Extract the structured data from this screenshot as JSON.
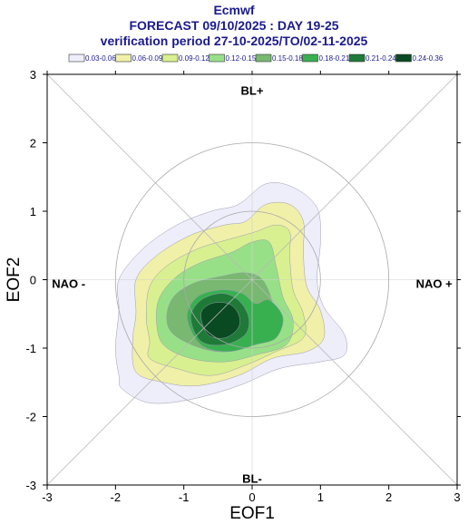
{
  "header": {
    "model": "Ecmwf",
    "forecast": "FORECAST 09/10/2025 : DAY 19-25",
    "verification": "verification period 27-10-2025/TO/02-11-2025"
  },
  "chart_data": {
    "type": "contour",
    "xlabel": "EOF1",
    "ylabel": "EOF2",
    "xlim": [
      -3,
      3
    ],
    "ylim": [
      -3,
      3
    ],
    "xticks": [
      "-3",
      "-2",
      "-1",
      "0",
      "1",
      "2",
      "3"
    ],
    "yticks": [
      "-3",
      "-2",
      "-1",
      "0",
      "1",
      "2",
      "3"
    ],
    "region_labels": {
      "top": "BL+",
      "bottom": "BL-",
      "left": "NAO -",
      "right": "NAO +"
    },
    "reference_circles_radius": [
      1,
      2
    ],
    "diagonals": true,
    "legend": [
      {
        "label": "0.03-0.06",
        "color": "#eeeefa"
      },
      {
        "label": "0.06-0.09",
        "color": "#f0f0a8"
      },
      {
        "label": "0.09-0.12",
        "color": "#d8f090"
      },
      {
        "label": "0.12-0.15",
        "color": "#98e088"
      },
      {
        "label": "0.15-0.18",
        "color": "#78b870"
      },
      {
        "label": "0.18-0.21",
        "color": "#38b050"
      },
      {
        "label": "0.21-0.24",
        "color": "#1f7a38"
      },
      {
        "label": "0.24-0.36",
        "color": "#0a4a22"
      }
    ],
    "density_levels": [
      {
        "range": "0.03-0.06",
        "points": [
          [
            -1.9,
            -1.6
          ],
          [
            -1.5,
            -1.8
          ],
          [
            -0.9,
            -1.75
          ],
          [
            -0.2,
            -1.55
          ],
          [
            0.4,
            -1.3
          ],
          [
            1.0,
            -1.2
          ],
          [
            1.35,
            -1.1
          ],
          [
            1.35,
            -0.8
          ],
          [
            1.05,
            -0.4
          ],
          [
            0.95,
            0.0
          ],
          [
            1.0,
            0.55
          ],
          [
            0.95,
            1.05
          ],
          [
            0.6,
            1.35
          ],
          [
            0.2,
            1.4
          ],
          [
            -0.2,
            1.1
          ],
          [
            -0.6,
            1.0
          ],
          [
            -1.1,
            0.8
          ],
          [
            -1.6,
            0.45
          ],
          [
            -1.95,
            0.0
          ],
          [
            -1.95,
            -0.45
          ],
          [
            -2.0,
            -1.0
          ],
          [
            -1.95,
            -1.4
          ]
        ]
      },
      {
        "range": "0.06-0.09",
        "points": [
          [
            -1.7,
            -1.35
          ],
          [
            -1.3,
            -1.5
          ],
          [
            -0.8,
            -1.55
          ],
          [
            -0.2,
            -1.4
          ],
          [
            0.3,
            -1.15
          ],
          [
            0.8,
            -1.05
          ],
          [
            1.05,
            -0.85
          ],
          [
            1.0,
            -0.45
          ],
          [
            0.8,
            -0.1
          ],
          [
            0.75,
            0.4
          ],
          [
            0.75,
            0.85
          ],
          [
            0.55,
            1.1
          ],
          [
            0.2,
            1.1
          ],
          [
            -0.1,
            0.85
          ],
          [
            -0.4,
            0.8
          ],
          [
            -0.9,
            0.65
          ],
          [
            -1.4,
            0.35
          ],
          [
            -1.7,
            0.0
          ],
          [
            -1.7,
            -0.5
          ],
          [
            -1.75,
            -0.9
          ]
        ]
      },
      {
        "range": "0.09-0.12",
        "points": [
          [
            -1.5,
            -1.15
          ],
          [
            -1.1,
            -1.3
          ],
          [
            -0.6,
            -1.4
          ],
          [
            -0.1,
            -1.25
          ],
          [
            0.35,
            -1.05
          ],
          [
            0.75,
            -0.85
          ],
          [
            0.75,
            -0.5
          ],
          [
            0.6,
            -0.15
          ],
          [
            0.55,
            0.35
          ],
          [
            0.55,
            0.7
          ],
          [
            0.35,
            0.8
          ],
          [
            0.05,
            0.7
          ],
          [
            -0.3,
            0.6
          ],
          [
            -0.8,
            0.45
          ],
          [
            -1.25,
            0.2
          ],
          [
            -1.5,
            -0.1
          ],
          [
            -1.55,
            -0.55
          ],
          [
            -1.5,
            -0.9
          ]
        ]
      },
      {
        "range": "0.12-0.15",
        "points": [
          [
            -1.3,
            -0.95
          ],
          [
            -0.9,
            -1.15
          ],
          [
            -0.4,
            -1.2
          ],
          [
            0.05,
            -1.1
          ],
          [
            0.5,
            -0.95
          ],
          [
            0.6,
            -0.6
          ],
          [
            0.45,
            -0.25
          ],
          [
            0.35,
            0.2
          ],
          [
            0.25,
            0.55
          ],
          [
            0.0,
            0.55
          ],
          [
            -0.3,
            0.4
          ],
          [
            -0.75,
            0.25
          ],
          [
            -1.1,
            0.05
          ],
          [
            -1.35,
            -0.25
          ],
          [
            -1.4,
            -0.6
          ]
        ]
      },
      {
        "range": "0.15-0.18",
        "points": [
          [
            -1.15,
            -0.8
          ],
          [
            -0.75,
            -1.0
          ],
          [
            -0.35,
            -1.05
          ],
          [
            0.0,
            -0.9
          ],
          [
            0.3,
            -0.7
          ],
          [
            0.3,
            -0.35
          ],
          [
            0.15,
            0.0
          ],
          [
            -0.1,
            0.1
          ],
          [
            -0.45,
            0.05
          ],
          [
            -0.85,
            -0.05
          ],
          [
            -1.15,
            -0.25
          ],
          [
            -1.25,
            -0.55
          ]
        ]
      },
      {
        "range": "0.18-0.21",
        "points": [
          [
            -0.75,
            -0.95
          ],
          [
            -0.35,
            -1.05
          ],
          [
            0.05,
            -0.95
          ],
          [
            0.35,
            -0.85
          ],
          [
            0.45,
            -0.55
          ],
          [
            0.25,
            -0.3
          ],
          [
            0.05,
            -0.35
          ],
          [
            -0.15,
            -0.2
          ],
          [
            -0.45,
            -0.15
          ],
          [
            -0.8,
            -0.25
          ],
          [
            -0.95,
            -0.55
          ]
        ]
      },
      {
        "range": "0.21-0.24",
        "points": [
          [
            -0.75,
            -0.9
          ],
          [
            -0.4,
            -0.95
          ],
          [
            -0.1,
            -0.8
          ],
          [
            -0.05,
            -0.55
          ],
          [
            -0.2,
            -0.3
          ],
          [
            -0.45,
            -0.2
          ],
          [
            -0.75,
            -0.3
          ],
          [
            -0.9,
            -0.55
          ]
        ]
      },
      {
        "range": "0.24-0.36",
        "points": [
          [
            -0.65,
            -0.8
          ],
          [
            -0.4,
            -0.85
          ],
          [
            -0.2,
            -0.7
          ],
          [
            -0.2,
            -0.5
          ],
          [
            -0.35,
            -0.35
          ],
          [
            -0.6,
            -0.35
          ],
          [
            -0.75,
            -0.5
          ]
        ]
      }
    ]
  }
}
